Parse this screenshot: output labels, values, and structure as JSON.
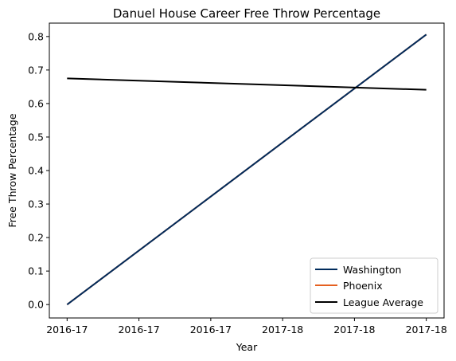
{
  "chart_data": {
    "type": "line",
    "title": "Danuel House Career Free Throw Percentage",
    "xlabel": "Year",
    "ylabel": "Free Throw Percentage",
    "x_tick_labels": [
      "2016-17",
      "2016-17",
      "2016-17",
      "2017-18",
      "2017-18",
      "2017-18"
    ],
    "x_range": [
      0,
      1
    ],
    "ylim": [
      -0.04,
      0.84
    ],
    "y_ticks": [
      0.0,
      0.1,
      0.2,
      0.3,
      0.4,
      0.5,
      0.6,
      0.7,
      0.8
    ],
    "y_tick_labels": [
      "0.0",
      "0.1",
      "0.2",
      "0.3",
      "0.4",
      "0.5",
      "0.6",
      "0.7",
      "0.8"
    ],
    "grid": false,
    "legend_position": "lower-right",
    "series": [
      {
        "name": "Washington",
        "color": "#002B5C",
        "x": [
          0,
          1
        ],
        "y": [
          0.0,
          0.806
        ]
      },
      {
        "name": "Phoenix",
        "color": "#E56020",
        "x": [
          0,
          1
        ],
        "y": [
          0.0,
          0.806
        ]
      },
      {
        "name": "League Average",
        "color": "#000000",
        "x": [
          0,
          1
        ],
        "y": [
          0.675,
          0.641
        ]
      }
    ]
  }
}
